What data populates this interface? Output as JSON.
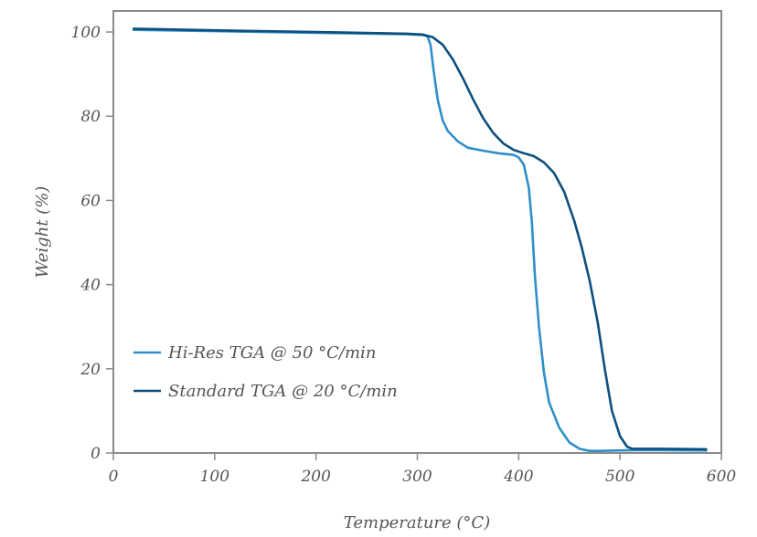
{
  "chart_data": {
    "type": "line",
    "title": "",
    "xlabel": "Temperature (°C)",
    "ylabel": "Weight (%)",
    "xlim": [
      0,
      600
    ],
    "ylim": [
      0,
      105
    ],
    "xticks": [
      0,
      100,
      200,
      300,
      400,
      500,
      600
    ],
    "yticks": [
      0,
      20,
      40,
      60,
      80,
      100
    ],
    "xtick_labels": [
      "0",
      "100",
      "200",
      "300",
      "400",
      "500",
      "600"
    ],
    "ytick_labels": [
      "0",
      "20",
      "40",
      "60",
      "80",
      "100"
    ],
    "grid": false,
    "legend_position": "bottom-left",
    "series": [
      {
        "name": "Hi-Res TGA @ 50 °C/min",
        "color": "#2e8fc9",
        "x": [
          20,
          100,
          200,
          290,
          305,
          310,
          313,
          316,
          320,
          325,
          330,
          340,
          350,
          365,
          380,
          395,
          400,
          405,
          410,
          413,
          416,
          420,
          425,
          430,
          440,
          450,
          460,
          470,
          480,
          500,
          520,
          585
        ],
        "y": [
          100.5,
          100.2,
          99.8,
          99.5,
          99.3,
          99.0,
          97.0,
          91.0,
          84.0,
          79.0,
          76.5,
          74.0,
          72.5,
          71.8,
          71.2,
          70.8,
          70.2,
          68.5,
          63.0,
          55.0,
          42.0,
          30.0,
          19.0,
          12.0,
          6.0,
          2.5,
          1.0,
          0.5,
          0.5,
          0.6,
          0.7,
          0.6
        ]
      },
      {
        "name": "Standard TGA @ 20 °C/min",
        "color": "#0d4f7f",
        "x": [
          20,
          100,
          200,
          290,
          305,
          315,
          325,
          335,
          345,
          355,
          365,
          375,
          385,
          395,
          405,
          415,
          425,
          435,
          445,
          455,
          462,
          470,
          478,
          485,
          492,
          500,
          507,
          512,
          520,
          540,
          585
        ],
        "y": [
          100.8,
          100.4,
          100.0,
          99.6,
          99.4,
          98.8,
          97.0,
          93.5,
          89.0,
          84.0,
          79.5,
          76.0,
          73.5,
          72.0,
          71.2,
          70.5,
          69.0,
          66.5,
          62.0,
          55.0,
          49.0,
          41.0,
          31.0,
          20.0,
          10.0,
          4.0,
          1.5,
          1.0,
          1.0,
          1.0,
          0.9
        ]
      }
    ]
  }
}
